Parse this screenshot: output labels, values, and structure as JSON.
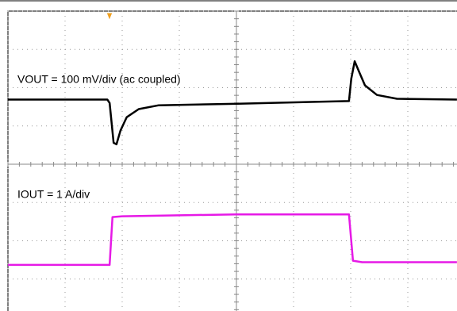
{
  "chart_data": {
    "type": "line",
    "xlim": [
      -4,
      4
    ],
    "ylim": [
      -4,
      4
    ],
    "xticks": [
      -4,
      -3,
      -2,
      -1,
      0,
      1,
      2,
      3,
      4
    ],
    "yticks": [
      -4,
      -3,
      -2,
      -1,
      0,
      1,
      2,
      3,
      4
    ],
    "grid": true,
    "series": [
      {
        "name": "VOUT = 100 mV/div (ac coupled)",
        "color": "#000000",
        "x": [
          -4,
          -2.26,
          -2.22,
          -2.15,
          -2.1,
          -2.03,
          -1.92,
          -1.71,
          -1.36,
          0.03,
          1.97,
          2.01,
          2.07,
          2.14,
          2.25,
          2.46,
          2.81,
          3.86
        ],
        "values": [
          1.69,
          1.69,
          1.6,
          0.56,
          0.52,
          0.88,
          1.23,
          1.44,
          1.54,
          1.58,
          1.65,
          2.23,
          2.69,
          2.44,
          2.06,
          1.81,
          1.71,
          1.69
        ]
      },
      {
        "name": "IOUT = 1 A/div",
        "color": "#e619e6",
        "x": [
          -4,
          -2.22,
          -2.17,
          -2.0,
          0,
          1.97,
          2.04,
          2.2,
          3.86
        ],
        "values": [
          -2.63,
          -2.63,
          -1.38,
          -1.36,
          -1.31,
          -1.31,
          -2.52,
          -2.56,
          -2.56
        ]
      }
    ]
  }
}
